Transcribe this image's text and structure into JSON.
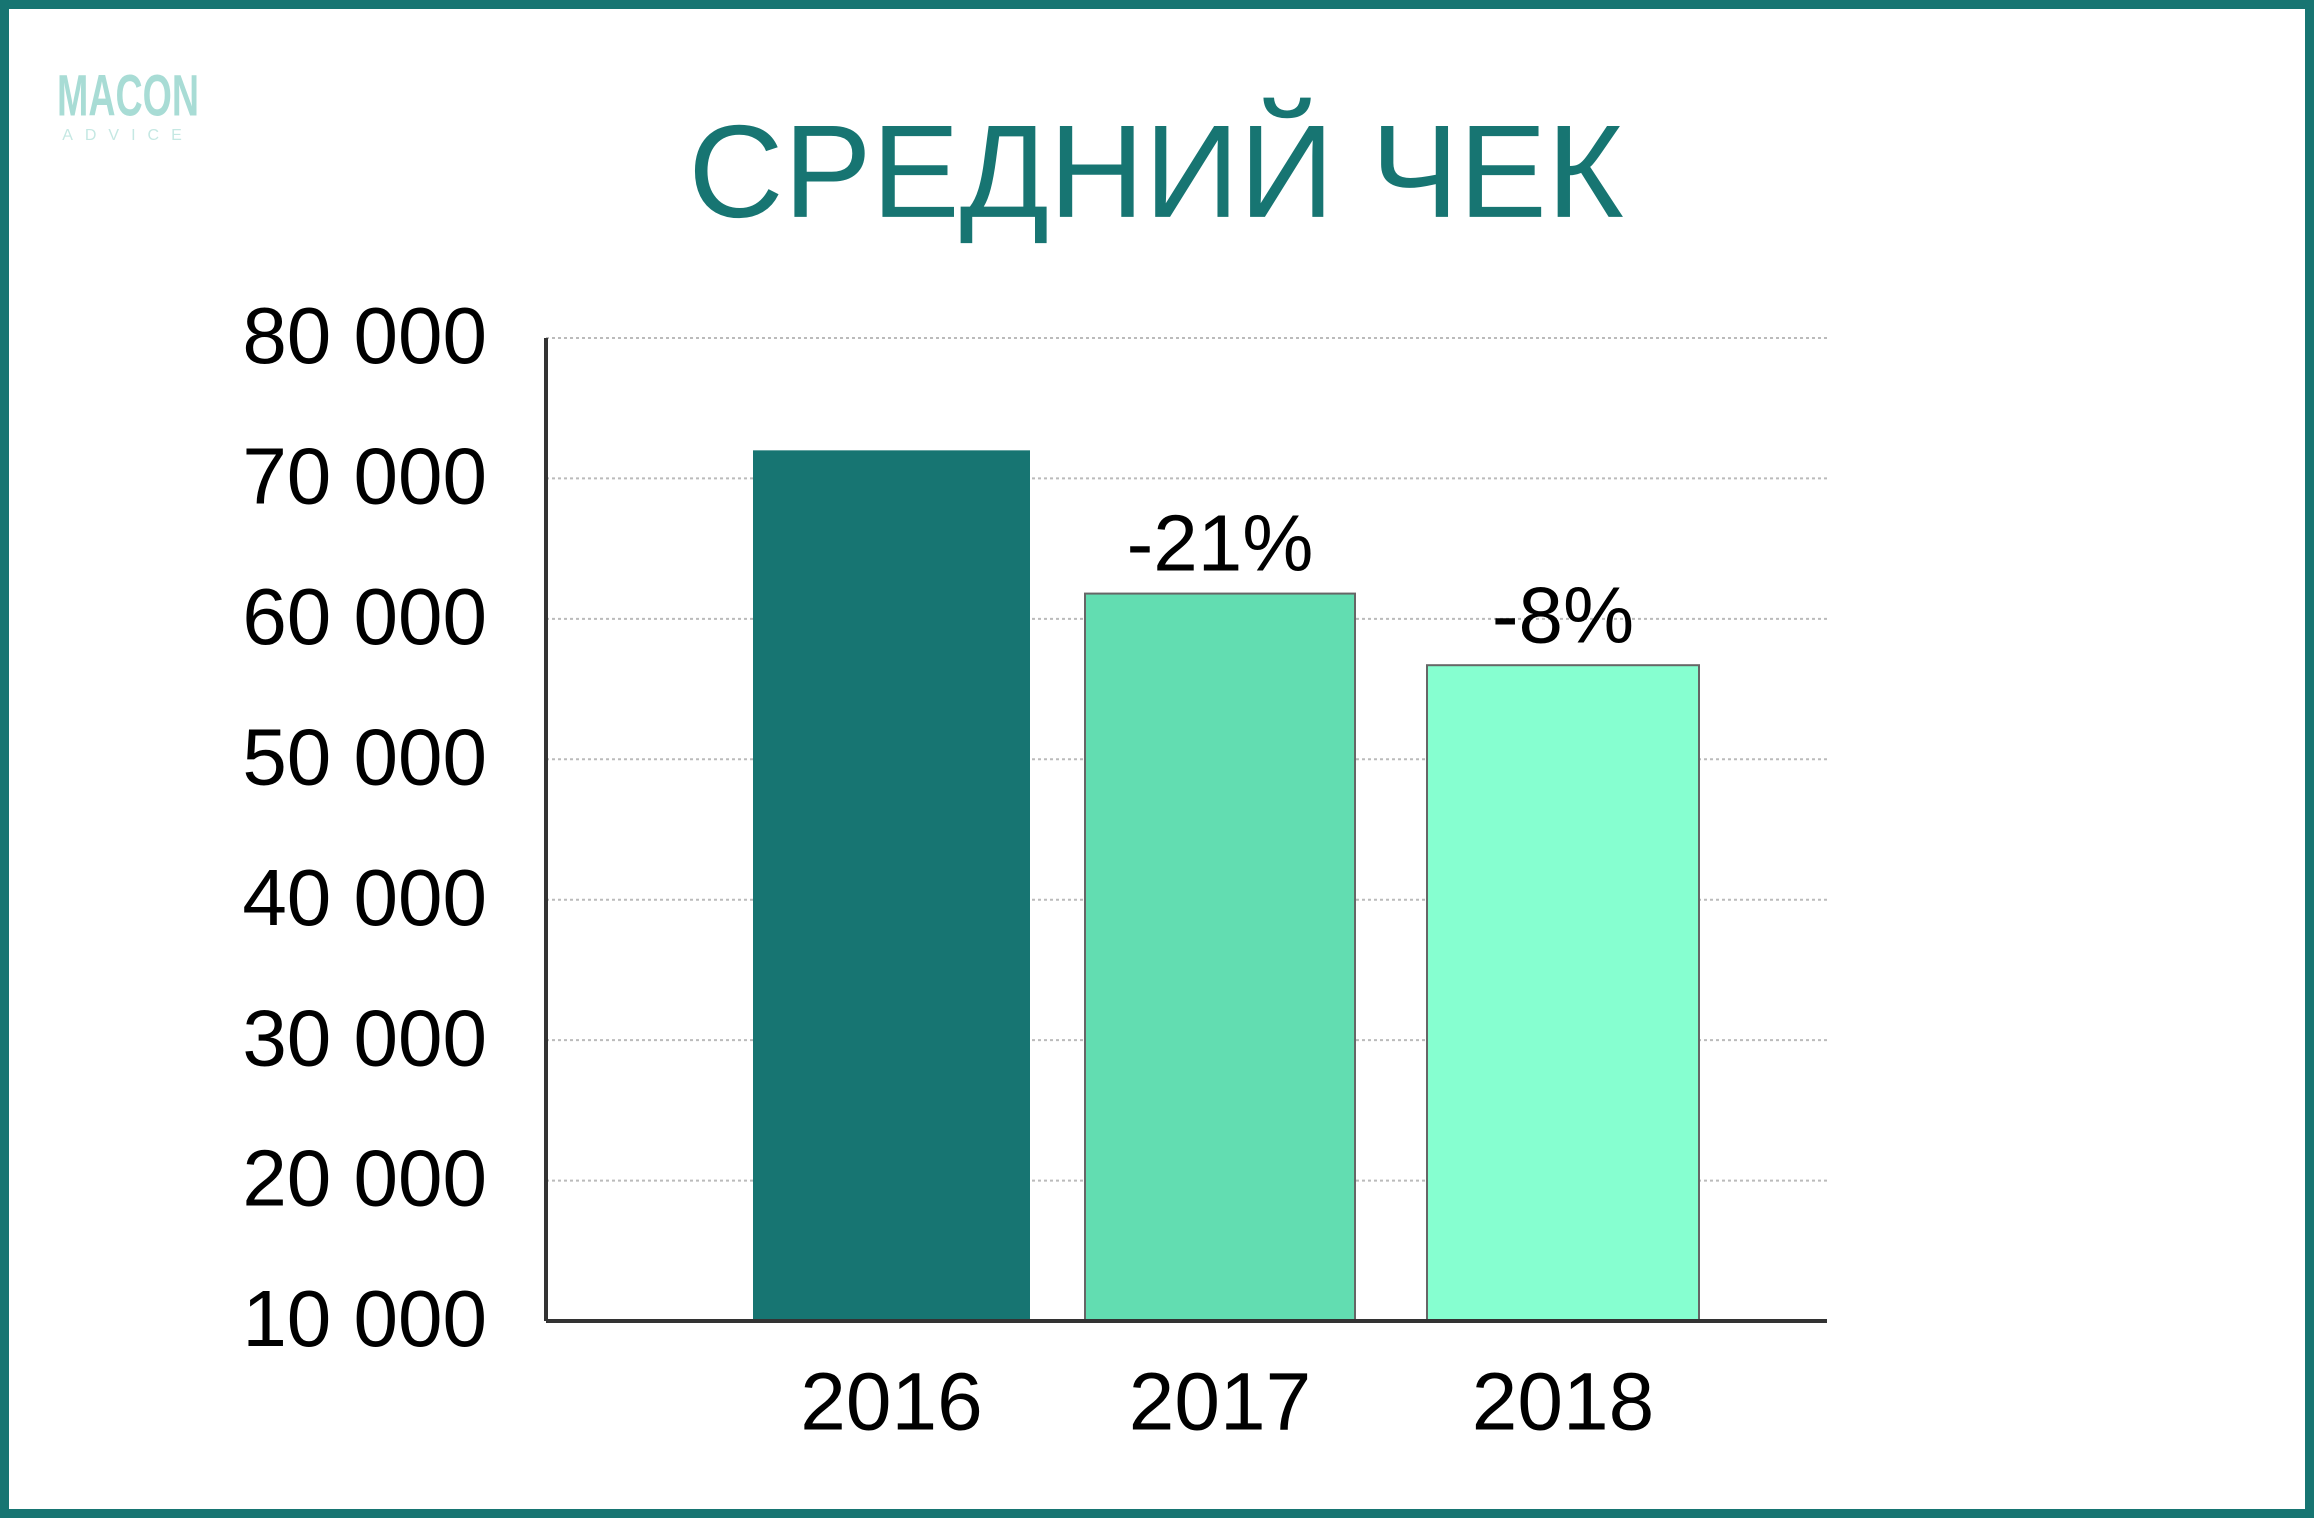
{
  "logo": {
    "name": "MACON",
    "tagline": "ADVICE"
  },
  "chart_data": {
    "type": "bar",
    "title": "СРЕДНИЙ ЧЕК",
    "categories": [
      "2016",
      "2017",
      "2018"
    ],
    "values": [
      72000,
      61800,
      56700
    ],
    "annotations": [
      null,
      "-21%",
      "-8%"
    ],
    "colors": [
      "#177572",
      "#62ddb1",
      "#86ffd0"
    ],
    "ylim": [
      10000,
      80000
    ],
    "yticks": [
      {
        "value": 10000,
        "label": "10 000"
      },
      {
        "value": 20000,
        "label": "20 000"
      },
      {
        "value": 30000,
        "label": "30 000"
      },
      {
        "value": 40000,
        "label": "40 000"
      },
      {
        "value": 50000,
        "label": "50 000"
      },
      {
        "value": 60000,
        "label": "60 000"
      },
      {
        "value": 70000,
        "label": "70 000"
      },
      {
        "value": 80000,
        "label": "80 000"
      }
    ],
    "grid": true
  }
}
